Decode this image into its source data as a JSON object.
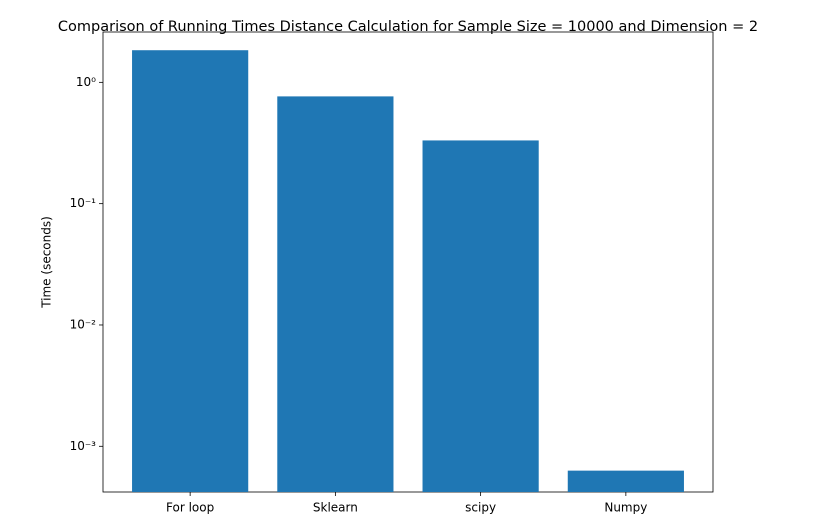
{
  "chart_data": {
    "type": "bar",
    "title": "Comparison of Running Times Distance Calculation for Sample Size = 10000 and Dimension = 2",
    "y_label": "Time (seconds)",
    "categories": [
      "For loop",
      "Sklearn",
      "scipy",
      "Numpy"
    ],
    "values": [
      1.84,
      0.766,
      0.332,
      0.00063
    ],
    "color": "#1f77b4",
    "y_scale": "log",
    "ylim": [
      0.00042,
      2.6
    ],
    "yticks": [
      {
        "value": 0.001,
        "label": "10⁻³"
      },
      {
        "value": 0.01,
        "label": "10⁻²"
      },
      {
        "value": 0.1,
        "label": "10⁻¹"
      },
      {
        "value": 1,
        "label": "10⁰"
      }
    ],
    "grid": false
  }
}
